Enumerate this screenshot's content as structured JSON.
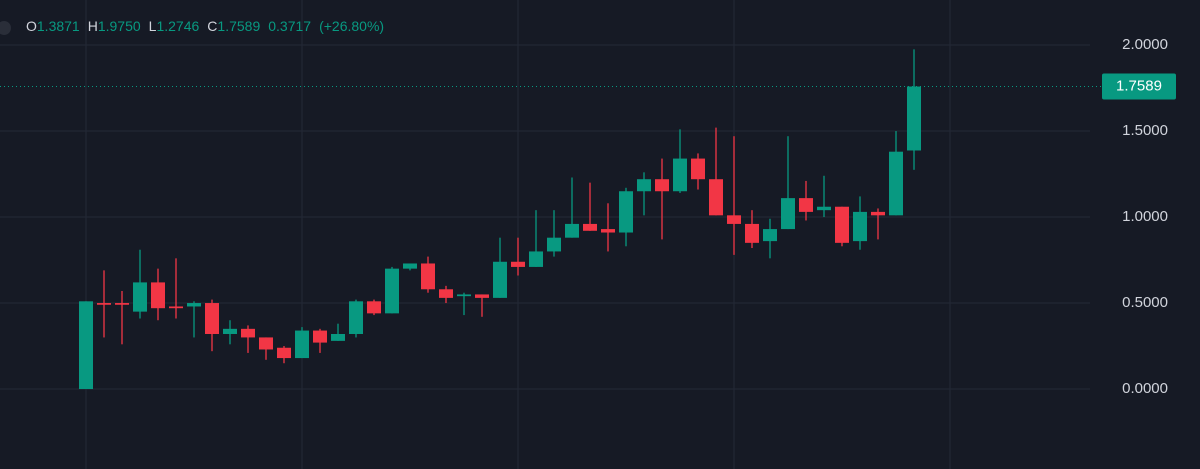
{
  "chart_data": {
    "type": "candlestick",
    "header": [
      {
        "label": "O",
        "value": "1.3871"
      },
      {
        "label": "H",
        "value": "1.9750"
      },
      {
        "label": "L",
        "value": "1.2746"
      },
      {
        "label": "C",
        "value": "1.7589"
      }
    ],
    "change": "0.3717",
    "change_percent": "(+26.80%)",
    "last_price_label": "1.7589",
    "up_color": "#089981",
    "down_color": "#f23645",
    "open": [
      0,
      0.5,
      0.5,
      0.45,
      0.62,
      0.48,
      0.48,
      0.5,
      0.32,
      0.35,
      0.3,
      0.24,
      0.18,
      0.34,
      0.28,
      0.32,
      0.51,
      0.44,
      0.7,
      0.73,
      0.58,
      0.54,
      0.55,
      0.53,
      0.74,
      0.71,
      0.8,
      0.88,
      0.96,
      0.93,
      0.91,
      1.15,
      1.22,
      1.15,
      1.34,
      1.22,
      1.01,
      0.96,
      0.86,
      0.93,
      1.11,
      1.04,
      1.06,
      0.86,
      1.03,
      1.01,
      1.3871
    ],
    "high": [
      0.51,
      0.69,
      0.57,
      0.81,
      0.7,
      0.76,
      0.51,
      0.52,
      0.4,
      0.37,
      0.3,
      0.25,
      0.36,
      0.35,
      0.38,
      0.52,
      0.52,
      0.71,
      0.73,
      0.77,
      0.6,
      0.56,
      0.55,
      0.88,
      0.88,
      1.04,
      1.04,
      1.23,
      1.2,
      1.08,
      1.17,
      1.26,
      1.34,
      1.51,
      1.37,
      1.52,
      1.47,
      1.04,
      0.99,
      1.47,
      1.21,
      1.24,
      1.06,
      1.12,
      1.05,
      1.5,
      1.975
    ],
    "low": [
      0,
      0.3,
      0.26,
      0.41,
      0.4,
      0.41,
      0.3,
      0.22,
      0.26,
      0.21,
      0.17,
      0.15,
      0.18,
      0.21,
      0.28,
      0.3,
      0.43,
      0.44,
      0.69,
      0.56,
      0.5,
      0.43,
      0.42,
      0.53,
      0.66,
      0.71,
      0.77,
      0.88,
      0.92,
      0.8,
      0.83,
      1.01,
      0.87,
      1.14,
      1.16,
      1.01,
      0.78,
      0.82,
      0.76,
      0.93,
      0.98,
      1.0,
      0.83,
      0.81,
      0.87,
      1.01,
      1.2746
    ],
    "close": [
      0.51,
      0.49,
      0.49,
      0.62,
      0.47,
      0.47,
      0.5,
      0.32,
      0.35,
      0.3,
      0.23,
      0.18,
      0.34,
      0.27,
      0.32,
      0.51,
      0.44,
      0.7,
      0.73,
      0.58,
      0.53,
      0.55,
      0.53,
      0.74,
      0.71,
      0.8,
      0.88,
      0.96,
      0.92,
      0.91,
      1.15,
      1.22,
      1.15,
      1.34,
      1.22,
      1.01,
      0.96,
      0.85,
      0.93,
      1.11,
      1.03,
      1.06,
      0.85,
      1.03,
      1.01,
      1.38,
      1.7589
    ],
    "ylim": [
      -0.465,
      2.262
    ],
    "yticks": [
      {
        "value": 0,
        "label": "0.0000"
      },
      {
        "value": 0.5,
        "label": "0.5000"
      },
      {
        "value": 1,
        "label": "1.0000"
      },
      {
        "value": 1.5,
        "label": "1.5000"
      },
      {
        "value": 2,
        "label": "2.0000"
      }
    ],
    "grid": true
  }
}
